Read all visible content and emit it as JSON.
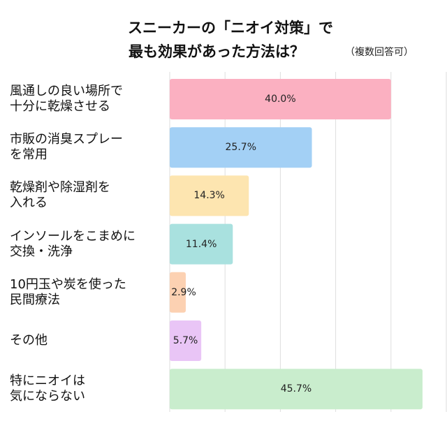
{
  "chart_data": {
    "type": "bar",
    "orientation": "horizontal",
    "title": "スニーカーの「ニオイ対策」で",
    "title_line2": "最も効果があった方法は？",
    "subtitle": "（複数回答可）",
    "xlim": [
      0,
      50
    ],
    "grid": true,
    "categories": [
      [
        "風通しの良い場所で",
        "十分に乾燥させる"
      ],
      [
        "市販の消臭スプレー",
        "を常用"
      ],
      [
        "乾燥剤や除湿剤を",
        "入れる"
      ],
      [
        "インソールをこまめに",
        "交換・洗浄"
      ],
      [
        "10円玉や炭を使った",
        "民間療法"
      ],
      [
        "その他"
      ],
      [
        "特にニオイは",
        "気にならない"
      ]
    ],
    "values": [
      40.0,
      25.7,
      14.3,
      11.4,
      2.9,
      5.7,
      45.7
    ],
    "data_labels": [
      "40.0%",
      "25.7%",
      "14.3%",
      "11.4%",
      "2.9%",
      "5.7%",
      "45.7%"
    ],
    "colors": [
      "#fbb0c1",
      "#a3d0f5",
      "#fde5b0",
      "#a9e1df",
      "#fcd1b2",
      "#e9c5f6",
      "#c9edcd"
    ]
  }
}
